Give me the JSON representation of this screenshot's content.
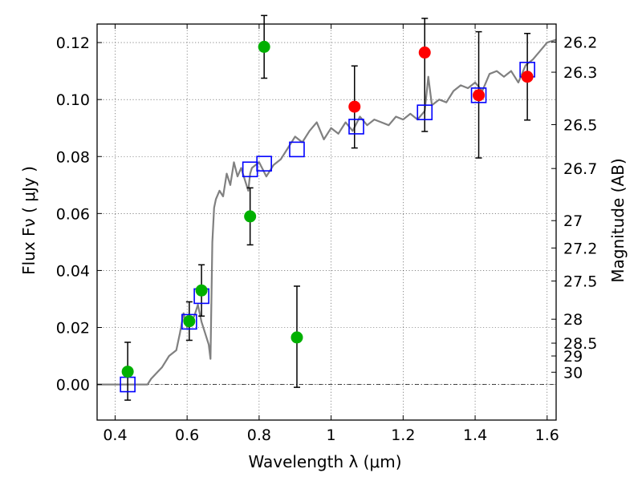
{
  "chart_data": {
    "type": "scatter",
    "xlabel": "Wavelength  λ (μm)",
    "ylabel": "Flux  Fν  ( μJy )",
    "ylabel_right": "Magnitude (AB)",
    "xlim": [
      0.35,
      1.625
    ],
    "ylim": [
      -0.0125,
      0.1265
    ],
    "grid": true,
    "x_ticks": [
      {
        "value": 0.4,
        "label": "0.4"
      },
      {
        "value": 0.6,
        "label": "0.6"
      },
      {
        "value": 0.8,
        "label": "0.8"
      },
      {
        "value": 1.0,
        "label": "1"
      },
      {
        "value": 1.2,
        "label": "1.2"
      },
      {
        "value": 1.4,
        "label": "1.4"
      },
      {
        "value": 1.6,
        "label": "1.6"
      }
    ],
    "y_ticks": [
      {
        "value": 0.0,
        "label": "0.00"
      },
      {
        "value": 0.02,
        "label": "0.02"
      },
      {
        "value": 0.04,
        "label": "0.04"
      },
      {
        "value": 0.06,
        "label": "0.06"
      },
      {
        "value": 0.08,
        "label": "0.08"
      },
      {
        "value": 0.1,
        "label": "0.10"
      },
      {
        "value": 0.12,
        "label": "0.12"
      }
    ],
    "right_ticks": [
      {
        "label": "26.2",
        "flux": 0.1202
      },
      {
        "label": "26.3",
        "flux": 0.1096
      },
      {
        "label": "26.5",
        "flux": 0.0912
      },
      {
        "label": "26.7",
        "flux": 0.0758
      },
      {
        "label": "27",
        "flux": 0.0575
      },
      {
        "label": "27.2",
        "flux": 0.0479
      },
      {
        "label": "27.5",
        "flux": 0.0363
      },
      {
        "label": "28",
        "flux": 0.0229
      },
      {
        "label": "28.5",
        "flux": 0.0145
      },
      {
        "label": "29",
        "flux": 0.01
      },
      {
        "label": "30",
        "flux": 0.0043
      }
    ],
    "series": [
      {
        "kind": "line",
        "color": "#808080",
        "x": [
          0.35,
          0.49,
          0.5,
          0.53,
          0.55,
          0.57,
          0.58,
          0.59,
          0.6,
          0.62,
          0.63,
          0.64,
          0.65,
          0.66,
          0.665,
          0.67,
          0.675,
          0.68,
          0.69,
          0.7,
          0.71,
          0.72,
          0.73,
          0.74,
          0.75,
          0.76,
          0.77,
          0.775,
          0.78,
          0.79,
          0.8,
          0.82,
          0.84,
          0.86,
          0.88,
          0.9,
          0.92,
          0.94,
          0.96,
          0.98,
          1.0,
          1.02,
          1.04,
          1.06,
          1.08,
          1.1,
          1.12,
          1.14,
          1.16,
          1.18,
          1.2,
          1.22,
          1.24,
          1.26,
          1.27,
          1.28,
          1.3,
          1.32,
          1.34,
          1.36,
          1.38,
          1.4,
          1.42,
          1.44,
          1.46,
          1.48,
          1.5,
          1.52,
          1.54,
          1.56,
          1.58,
          1.6,
          1.625
        ],
        "y": [
          0.0,
          0.0,
          0.002,
          0.006,
          0.01,
          0.012,
          0.018,
          0.025,
          0.02,
          0.024,
          0.028,
          0.022,
          0.018,
          0.014,
          0.009,
          0.05,
          0.062,
          0.065,
          0.068,
          0.066,
          0.074,
          0.07,
          0.078,
          0.073,
          0.076,
          0.072,
          0.068,
          0.074,
          0.076,
          0.077,
          0.078,
          0.073,
          0.077,
          0.079,
          0.083,
          0.087,
          0.085,
          0.089,
          0.092,
          0.086,
          0.09,
          0.088,
          0.092,
          0.089,
          0.094,
          0.091,
          0.093,
          0.092,
          0.091,
          0.094,
          0.093,
          0.095,
          0.093,
          0.096,
          0.108,
          0.098,
          0.1,
          0.099,
          0.103,
          0.105,
          0.104,
          0.106,
          0.103,
          0.109,
          0.11,
          0.108,
          0.11,
          0.106,
          0.112,
          0.114,
          0.117,
          0.12,
          0.121
        ]
      },
      {
        "kind": "squares",
        "color": "#0000ff",
        "x": [
          0.435,
          0.606,
          0.64,
          0.775,
          0.814,
          0.905,
          1.07,
          1.26,
          1.41,
          1.545
        ],
        "y": [
          0.0,
          0.022,
          0.031,
          0.0755,
          0.0775,
          0.0825,
          0.0905,
          0.0955,
          0.1015,
          0.1105
        ]
      },
      {
        "kind": "points",
        "color": "#00b000",
        "x": [
          0.435,
          0.606,
          0.64,
          0.775,
          0.814,
          0.905
        ],
        "y": [
          0.0045,
          0.0222,
          0.033,
          0.059,
          0.1185,
          0.0165
        ],
        "yerr_low": [
          -0.0055,
          0.0155,
          0.024,
          0.049,
          0.1075,
          -0.001
        ],
        "yerr_high": [
          0.0148,
          0.029,
          0.042,
          0.069,
          0.1295,
          0.0345
        ]
      },
      {
        "kind": "points",
        "color": "#ff0000",
        "x": [
          1.065,
          1.26,
          1.41,
          1.545
        ],
        "y": [
          0.0975,
          0.1165,
          0.1015,
          0.108
        ],
        "yerr_low": [
          0.083,
          0.0888,
          0.0795,
          0.0928
        ],
        "yerr_high": [
          0.1118,
          0.1285,
          0.1238,
          0.1232
        ]
      }
    ]
  }
}
